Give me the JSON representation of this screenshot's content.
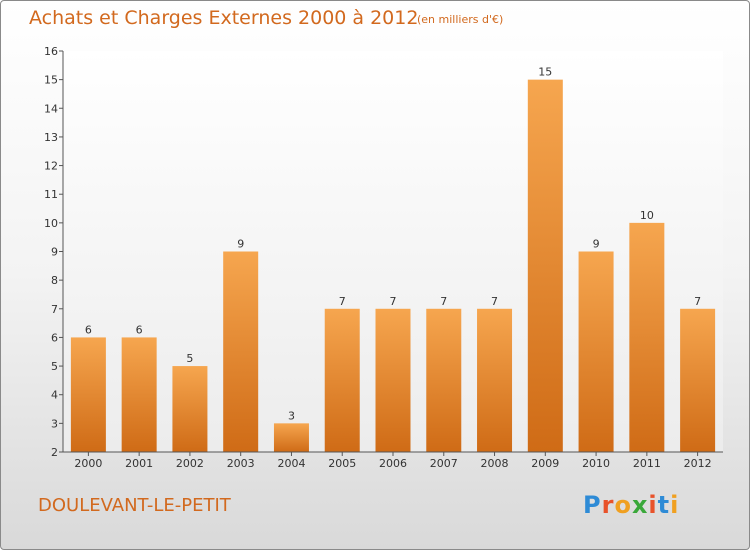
{
  "header": {
    "title": "Achats et Charges Externes 2000 à 2012",
    "subtitle": "(en milliers d'€)"
  },
  "footer": {
    "commune": "DOULEVANT-LE-PETIT",
    "logo": "Proxiti",
    "logo_colors": [
      "#2e8bd6",
      "#e8522a",
      "#f0a020",
      "#3aa83a",
      "#e8522a",
      "#2e8bd6",
      "#f0a020"
    ]
  },
  "colors": {
    "bar_light": "#f6a64f",
    "bar_dark": "#cf6b16",
    "accent": "#d2691e"
  },
  "chart_data": {
    "type": "bar",
    "categories": [
      "2000",
      "2001",
      "2002",
      "2003",
      "2004",
      "2005",
      "2006",
      "2007",
      "2008",
      "2009",
      "2010",
      "2011",
      "2012"
    ],
    "values": [
      6,
      6,
      5,
      9,
      3,
      7,
      7,
      7,
      7,
      15,
      9,
      10,
      7
    ],
    "title": "Achats et Charges Externes 2000 à 2012",
    "ylim": [
      2,
      16
    ],
    "yticks": [
      2,
      3,
      4,
      5,
      6,
      7,
      8,
      9,
      10,
      11,
      12,
      13,
      14,
      15,
      16
    ],
    "grid": false,
    "data_labels": true
  }
}
